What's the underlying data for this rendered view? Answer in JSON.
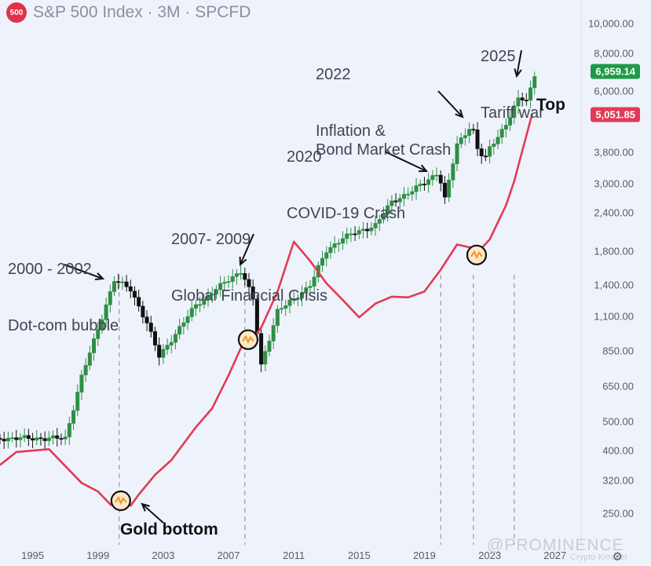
{
  "header": {
    "badge": "500",
    "title": "S&P 500 Index · 3M · SPCFD"
  },
  "annotations": {
    "dotcom": {
      "year": "2000 - 2002",
      "label": "Dot-com bubble"
    },
    "gfc": {
      "year": "2007- 2009",
      "label": "Global Financial Crisis"
    },
    "covid": {
      "year": "2020",
      "label": "COVID-19 Crash"
    },
    "inflation": {
      "year": "2022",
      "label": "Inflation &\nBond Market Crash"
    },
    "tariff": {
      "year": "2025",
      "label": "Tariff war"
    },
    "top": "Top",
    "gold_bottom": "Gold bottom"
  },
  "watermark": {
    "brand": "@PROMINENCE",
    "sub": "Crypto Kimmer"
  },
  "icons": {
    "settings": "gear-icon"
  },
  "colors": {
    "up": "#2f8f46",
    "down": "#111111",
    "gold_ratio_line": "#e23a56",
    "price_label_sp": "#1f9a47",
    "price_label_line": "#e23a56",
    "badge": "#e0334b"
  },
  "chart_data": {
    "type": "line",
    "title": "S&P 500 Index · 3M · SPCFD",
    "y_scale": "log",
    "y_ticks": [
      {
        "value": 10000,
        "label": "10,000.00"
      },
      {
        "value": 8000,
        "label": "8,000.00"
      },
      {
        "value": 6000,
        "label": "6,000.00"
      },
      {
        "value": 3800,
        "label": "3,800.00"
      },
      {
        "value": 3000,
        "label": "3,000.00"
      },
      {
        "value": 2400,
        "label": "2,400.00"
      },
      {
        "value": 1800,
        "label": "1,800.00"
      },
      {
        "value": 1400,
        "label": "1,400.00"
      },
      {
        "value": 1100,
        "label": "1,100.00"
      },
      {
        "value": 850,
        "label": "850.00"
      },
      {
        "value": 650,
        "label": "650.00"
      },
      {
        "value": 500,
        "label": "500.00"
      },
      {
        "value": 400,
        "label": "400.00"
      },
      {
        "value": 320,
        "label": "320.00"
      },
      {
        "value": 250,
        "label": "250.00"
      }
    ],
    "x_ticks": [
      "1995",
      "1999",
      "2003",
      "2007",
      "2011",
      "2015",
      "2019",
      "2023",
      "2027"
    ],
    "x_range": [
      1993.0,
      2028.6
    ],
    "current_price": {
      "value": 6959.14,
      "label": "6,959.14"
    },
    "line_last": {
      "value": 5051.85,
      "label": "5,051.85"
    },
    "crisis_markers_year": [
      2000.3,
      2008.0,
      2020.0,
      2022.0,
      2024.5
    ],
    "gold_bottom_markers": [
      {
        "x": 2000.4,
        "y": 275
      },
      {
        "x": 2008.2,
        "y": 925
      },
      {
        "x": 2022.2,
        "y": 1750
      }
    ],
    "series": [
      {
        "name": "S&P 500 (quarterly candles)",
        "kind": "candles",
        "x": [
          1993.0,
          1997.0,
          1998.0,
          1999.0,
          2000.0,
          2001.0,
          2002.0,
          2002.8,
          2003.0,
          2005.0,
          2007.0,
          2007.8,
          2008.5,
          2009.0,
          2010.0,
          2011.0,
          2012.0,
          2013.0,
          2014.0,
          2015.0,
          2016.0,
          2017.0,
          2018.0,
          2019.0,
          2019.9,
          2020.2,
          2021.0,
          2021.9,
          2022.3,
          2022.8,
          2023.0,
          2024.0,
          2024.8,
          2025.3,
          2025.8
        ],
        "values": [
          440,
          440,
          700,
          1000,
          1450,
          1350,
          1050,
          800,
          850,
          1200,
          1450,
          1560,
          1250,
          760,
          1150,
          1250,
          1400,
          1800,
          2000,
          2080,
          2200,
          2600,
          2800,
          3000,
          3300,
          2600,
          4000,
          4700,
          3800,
          3600,
          3900,
          4700,
          5700,
          5600,
          6959
        ]
      },
      {
        "name": "S&P 500 / Gold ratio (scaled)",
        "kind": "line",
        "x": [
          1993.0,
          1994.0,
          1996.0,
          1998.0,
          1999.0,
          1999.8,
          2000.4,
          2001.0,
          2001.5,
          2002.5,
          2003.5,
          2005.0,
          2006.0,
          2007.0,
          2007.8,
          2008.4,
          2009.0,
          2010.0,
          2011.0,
          2012.0,
          2013.0,
          2014.0,
          2015.0,
          2016.0,
          2017.0,
          2018.0,
          2019.0,
          2020.0,
          2021.0,
          2022.0,
          2022.2,
          2023.0,
          2024.0,
          2024.5,
          2025.0,
          2025.6
        ],
        "values": [
          360,
          400,
          400,
          320,
          290,
          270,
          285,
          265,
          290,
          330,
          380,
          470,
          560,
          700,
          880,
          920,
          1000,
          1350,
          1900,
          1700,
          1400,
          1250,
          1100,
          1200,
          1300,
          1250,
          1350,
          1550,
          1900,
          1850,
          1750,
          2000,
          2500,
          3100,
          3800,
          5050
        ]
      }
    ]
  }
}
